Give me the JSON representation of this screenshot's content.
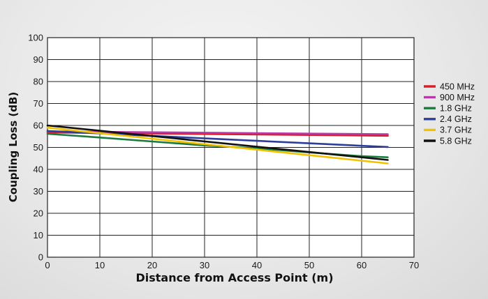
{
  "chart_data": {
    "type": "line",
    "title": "",
    "xlabel": "Distance from Access Point (m)",
    "ylabel": "Coupling Loss (dB)",
    "xlim": [
      0,
      70
    ],
    "ylim": [
      0,
      100
    ],
    "xticks": [
      0,
      10,
      20,
      30,
      40,
      50,
      60,
      70
    ],
    "yticks": [
      0,
      10,
      20,
      30,
      40,
      50,
      60,
      70,
      80,
      90,
      100
    ],
    "grid": true,
    "legend_position": "right",
    "series": [
      {
        "name": "450 MHz",
        "color": "#d81e2a",
        "x": [
          0,
          65
        ],
        "y": [
          56.8,
          55.3
        ]
      },
      {
        "name": "900 MHz",
        "color": "#b83aa6",
        "x": [
          0,
          65
        ],
        "y": [
          57.3,
          56.0
        ]
      },
      {
        "name": "1.8 GHz",
        "color": "#1e7a3c",
        "x": [
          0,
          10,
          20,
          30,
          40,
          50,
          60,
          65
        ],
        "y": [
          56.2,
          54.5,
          52.7,
          50.9,
          49.6,
          47.7,
          46.0,
          45.5
        ]
      },
      {
        "name": "2.4 GHz",
        "color": "#2b3e9a",
        "x": [
          0,
          65
        ],
        "y": [
          57.5,
          50.2
        ]
      },
      {
        "name": "3.7 GHz",
        "color": "#f2c200",
        "x": [
          0,
          65
        ],
        "y": [
          59.0,
          42.7
        ]
      },
      {
        "name": "5.8 GHz",
        "color": "#111111",
        "x": [
          0,
          65
        ],
        "y": [
          60.0,
          44.3
        ]
      }
    ]
  }
}
